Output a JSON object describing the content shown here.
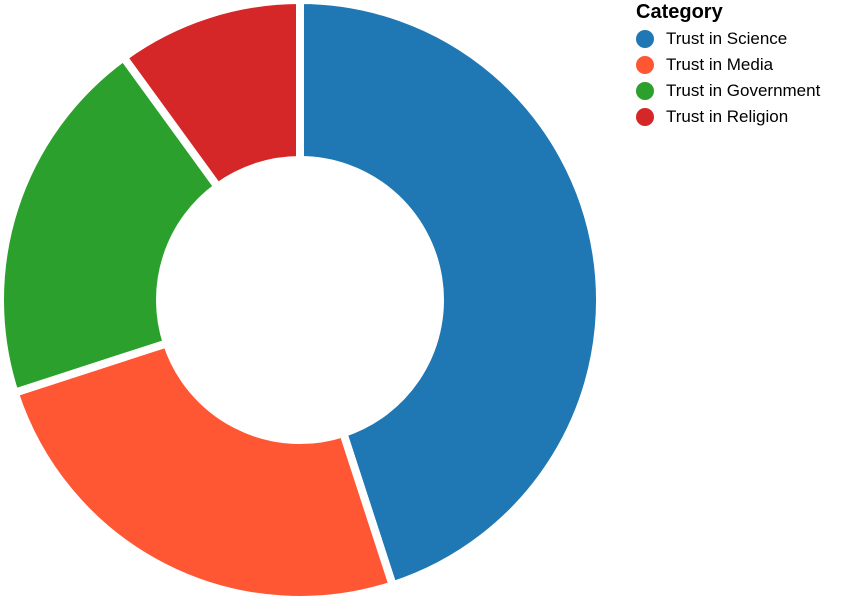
{
  "chart_data": {
    "type": "pie",
    "donut": true,
    "legend_title": "Category",
    "legend_position": "top-right",
    "categories": [
      "Trust in Science",
      "Trust in Media",
      "Trust in Government",
      "Trust in Religion"
    ],
    "values": [
      45,
      25,
      20,
      10
    ],
    "colors": [
      "#1f77b4",
      "#ff5733",
      "#2ca02c",
      "#d62728"
    ]
  }
}
